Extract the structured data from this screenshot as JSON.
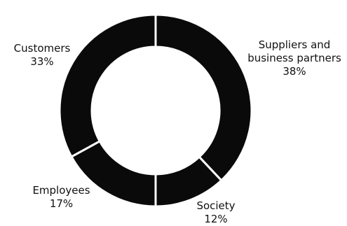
{
  "chart_data": {
    "type": "pie",
    "variant": "donut",
    "title": "",
    "slices": [
      {
        "name": "Suppliers and business partners",
        "line1": "Suppliers and",
        "line2": "business partners",
        "value": 38,
        "label": "38%"
      },
      {
        "name": "Society",
        "line1": "Society",
        "line2": "",
        "value": 12,
        "label": "12%"
      },
      {
        "name": "Employees",
        "line1": "Employees",
        "line2": "",
        "value": 17,
        "label": "17%"
      },
      {
        "name": "Customers",
        "line1": "Customers",
        "line2": "",
        "value": 33,
        "label": "33%"
      }
    ],
    "start_angle": "12 o'clock",
    "direction": "clockwise",
    "colors": {
      "slice": "#0a0a0a",
      "separator": "#ffffff",
      "background": "#ffffff"
    }
  }
}
